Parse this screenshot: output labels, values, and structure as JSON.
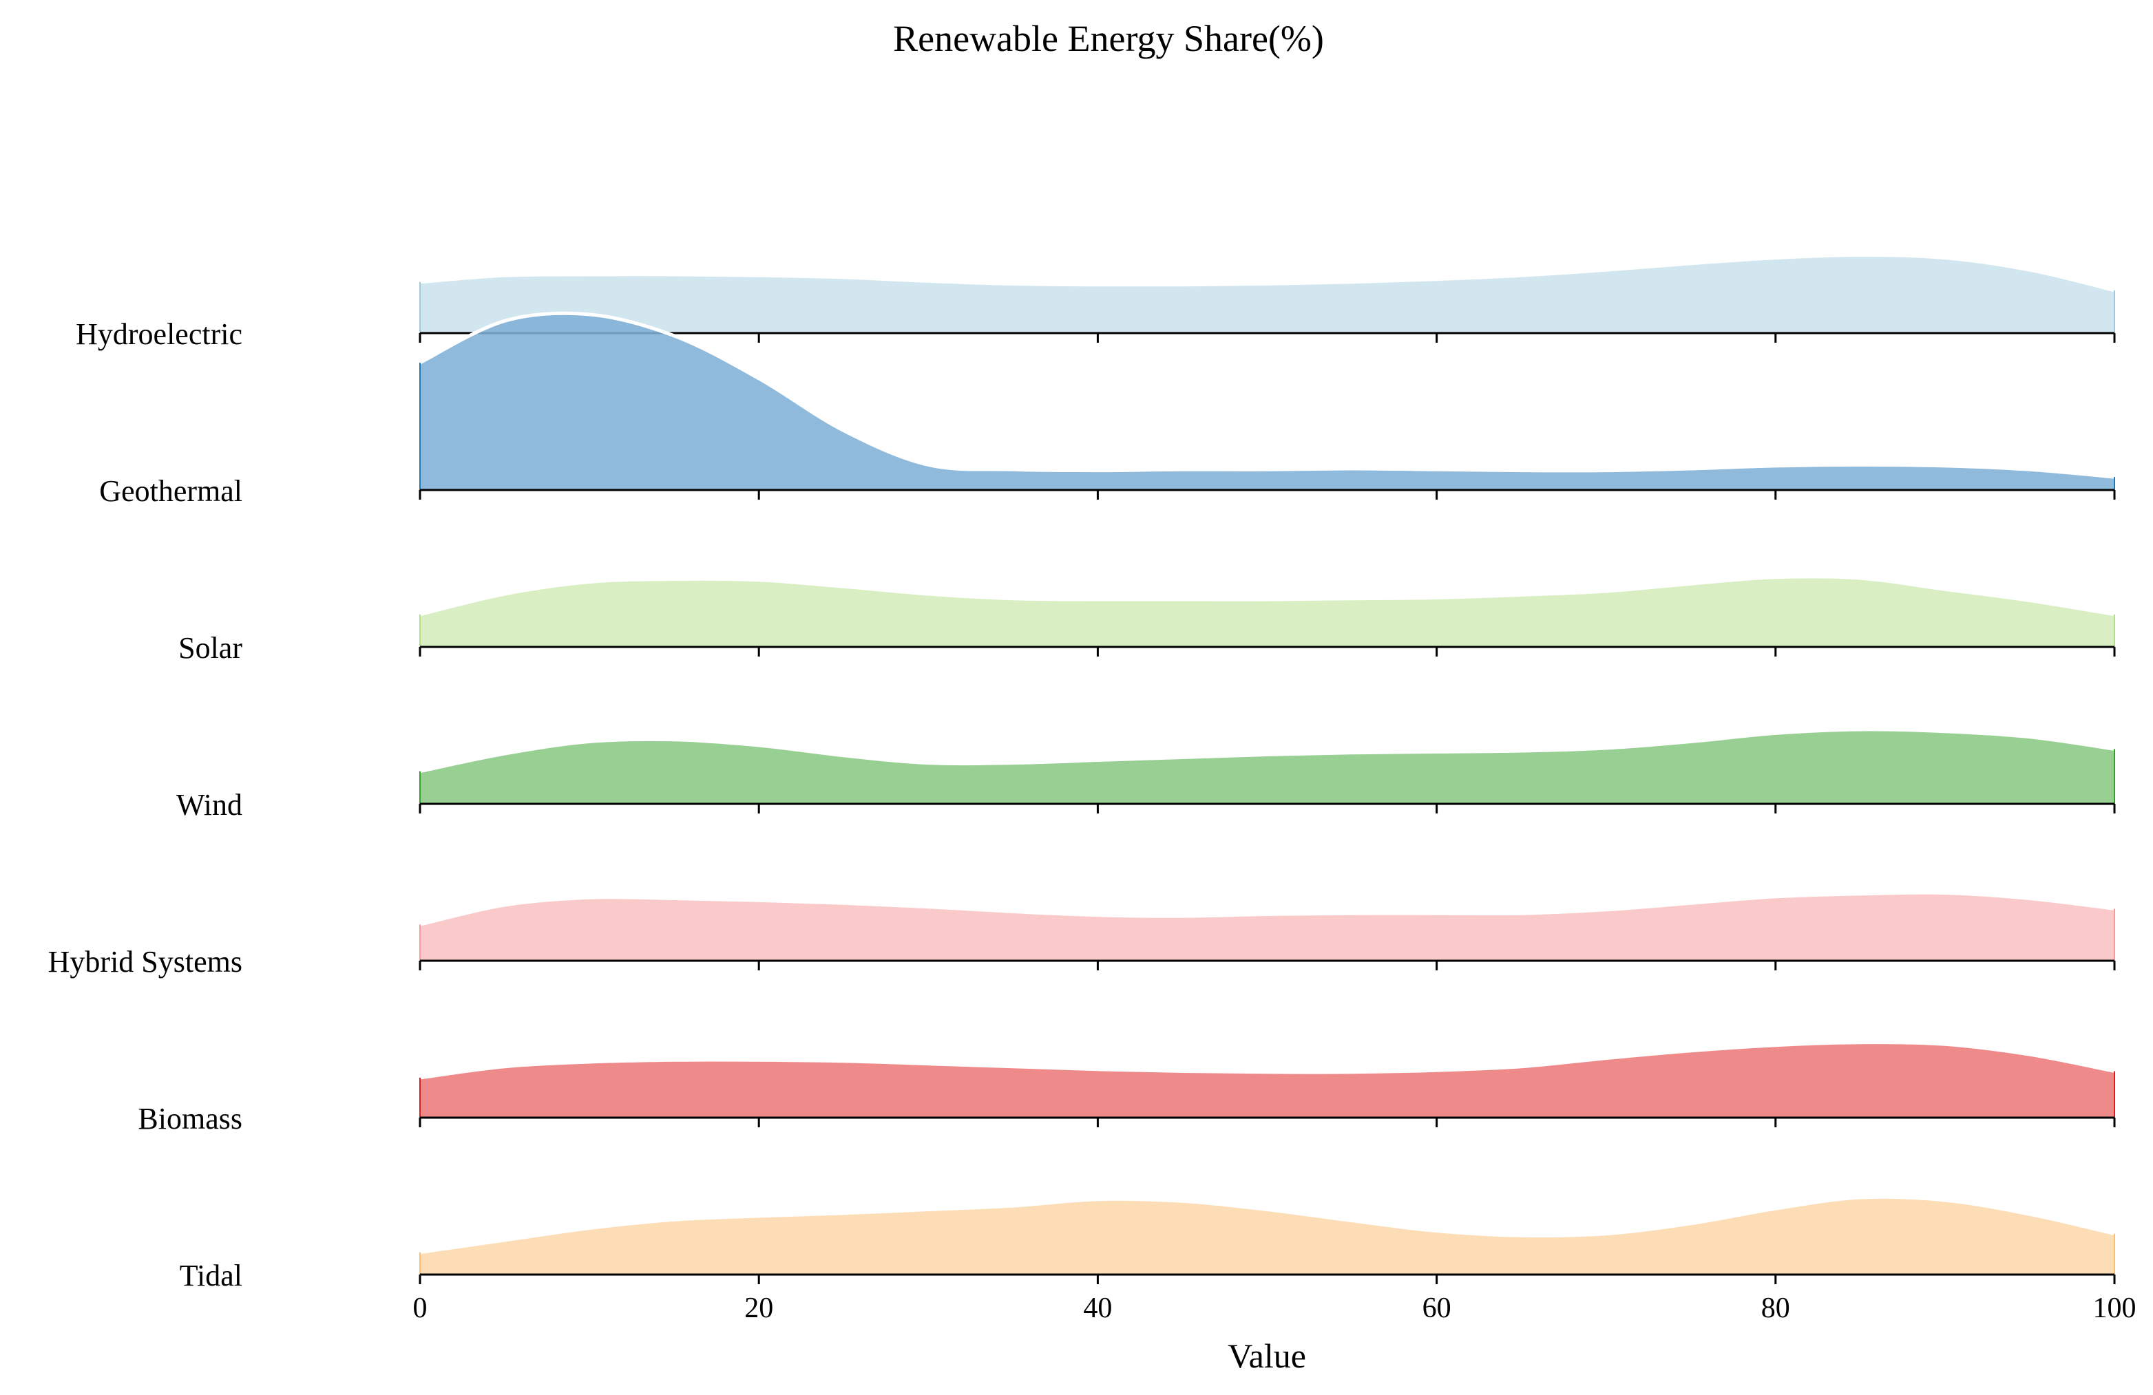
{
  "chart_data": {
    "type": "area",
    "subtype": "ridgeline",
    "title": "Renewable Energy Share(%)",
    "xlabel": "Value",
    "ylabel": "",
    "xlim": [
      0,
      100
    ],
    "xticks": [
      0,
      20,
      40,
      60,
      80,
      100
    ],
    "grid": false,
    "legend": "none",
    "density_unit": "relative ridge height (0-1 scale, ridge peak ~1.0)",
    "x": [
      0,
      5,
      10,
      15,
      20,
      25,
      30,
      35,
      40,
      45,
      50,
      55,
      60,
      65,
      70,
      75,
      80,
      85,
      90,
      95,
      100
    ],
    "series": [
      {
        "name": "Hydroelectric",
        "color": "#d2e6ef",
        "stroke": "#9ecae1",
        "values": [
          0.55,
          0.62,
          0.63,
          0.63,
          0.62,
          0.6,
          0.56,
          0.53,
          0.52,
          0.52,
          0.53,
          0.55,
          0.58,
          0.62,
          0.68,
          0.75,
          0.81,
          0.84,
          0.81,
          0.68,
          0.46
        ]
      },
      {
        "name": "Geothermal",
        "color": "#7fb1d6",
        "stroke": "#1f77b4",
        "values": [
          1.37,
          1.82,
          1.89,
          1.66,
          1.2,
          0.64,
          0.27,
          0.22,
          0.21,
          0.22,
          0.22,
          0.23,
          0.22,
          0.21,
          0.21,
          0.23,
          0.26,
          0.27,
          0.26,
          0.22,
          0.14
        ]
      },
      {
        "name": "Solar",
        "color": "#d9efc3",
        "stroke": "#b2df8a",
        "values": [
          0.35,
          0.57,
          0.7,
          0.73,
          0.72,
          0.65,
          0.57,
          0.52,
          0.51,
          0.51,
          0.51,
          0.52,
          0.53,
          0.56,
          0.6,
          0.68,
          0.75,
          0.74,
          0.62,
          0.5,
          0.35
        ]
      },
      {
        "name": "Wind",
        "color": "#98cf93",
        "stroke": "#33a02c",
        "values": [
          0.35,
          0.54,
          0.67,
          0.69,
          0.63,
          0.52,
          0.44,
          0.44,
          0.47,
          0.5,
          0.53,
          0.55,
          0.56,
          0.57,
          0.6,
          0.67,
          0.76,
          0.8,
          0.78,
          0.72,
          0.59
        ]
      },
      {
        "name": "Hybrid Systems",
        "color": "#fac9c9",
        "stroke": "#fb9a99",
        "values": [
          0.39,
          0.6,
          0.68,
          0.67,
          0.65,
          0.62,
          0.58,
          0.53,
          0.49,
          0.48,
          0.5,
          0.51,
          0.51,
          0.51,
          0.55,
          0.62,
          0.69,
          0.72,
          0.73,
          0.67,
          0.56
        ]
      },
      {
        "name": "Biomass",
        "color": "#ef8a8b",
        "stroke": "#e31a1c",
        "values": [
          0.43,
          0.55,
          0.6,
          0.62,
          0.62,
          0.61,
          0.58,
          0.55,
          0.52,
          0.5,
          0.49,
          0.49,
          0.51,
          0.55,
          0.64,
          0.72,
          0.78,
          0.81,
          0.79,
          0.68,
          0.5
        ]
      },
      {
        "name": "Tidal",
        "color": "#fdddb6",
        "stroke": "#fdbf6f",
        "values": [
          0.24,
          0.37,
          0.5,
          0.59,
          0.63,
          0.66,
          0.7,
          0.74,
          0.81,
          0.79,
          0.7,
          0.58,
          0.47,
          0.42,
          0.44,
          0.55,
          0.71,
          0.83,
          0.8,
          0.65,
          0.44
        ]
      }
    ]
  }
}
